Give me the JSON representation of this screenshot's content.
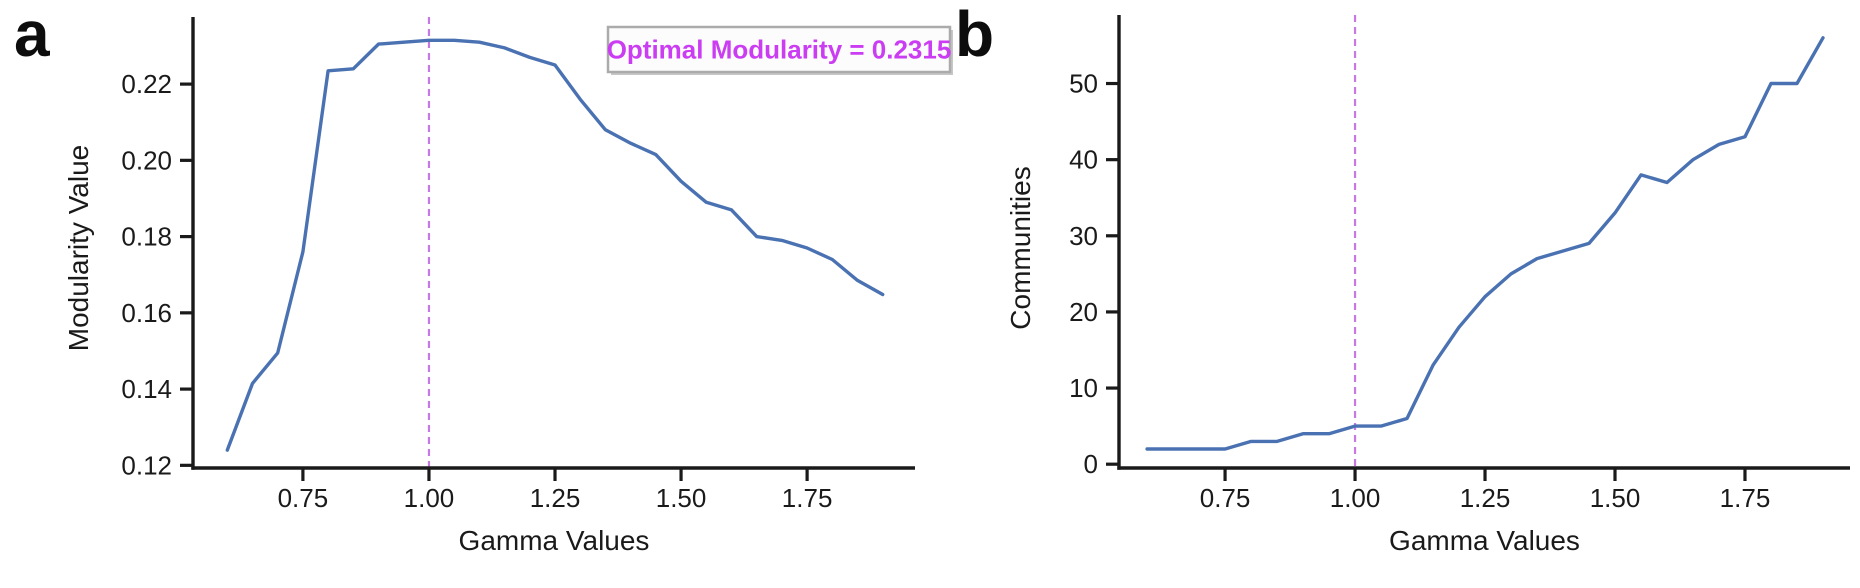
{
  "figure": {
    "background": "#ffffff",
    "panels": [
      {
        "label": "a"
      },
      {
        "label": "b"
      }
    ]
  },
  "colors": {
    "data_line": "#4a72b2",
    "vline": "#c06ae0",
    "axis": "#1a1a1a",
    "annotation_text": "#cb3df2",
    "annotation_border": "#ababab",
    "annotation_bg": "#fcfcfc",
    "annotation_shadow": "#999999"
  },
  "chart_data": [
    {
      "type": "line",
      "panel": "a",
      "title": "",
      "xlabel": "Gamma Values",
      "ylabel": "Modularity Value",
      "x": [
        0.6,
        0.65,
        0.7,
        0.75,
        0.8,
        0.85,
        0.9,
        0.95,
        1.0,
        1.05,
        1.1,
        1.15,
        1.2,
        1.25,
        1.3,
        1.35,
        1.4,
        1.45,
        1.5,
        1.55,
        1.6,
        1.65,
        1.7,
        1.75,
        1.8,
        1.85,
        1.9
      ],
      "y": [
        0.124,
        0.1415,
        0.1495,
        0.176,
        0.2235,
        0.224,
        0.2305,
        0.231,
        0.2315,
        0.2315,
        0.231,
        0.2295,
        0.227,
        0.225,
        0.216,
        0.208,
        0.2045,
        0.2015,
        0.1945,
        0.189,
        0.187,
        0.18,
        0.179,
        0.177,
        0.174,
        0.1685,
        0.1648
      ],
      "xlim": [
        0.532,
        1.964
      ],
      "ylim": [
        0.1193,
        0.2376
      ],
      "xticks": {
        "values": [
          0.75,
          1.0,
          1.25,
          1.5,
          1.75
        ],
        "labels": [
          "0.75",
          "1.00",
          "1.25",
          "1.50",
          "1.75"
        ]
      },
      "yticks": {
        "values": [
          0.12,
          0.14,
          0.16,
          0.18,
          0.2,
          0.22
        ],
        "labels": [
          "0.12",
          "0.14",
          "0.16",
          "0.18",
          "0.20",
          "0.22"
        ]
      },
      "grid": false,
      "legend": null,
      "vline": {
        "x": 1.0,
        "style": "dashed"
      },
      "annotation": {
        "text": "Optimal Modularity = 0.2315"
      }
    },
    {
      "type": "line",
      "panel": "b",
      "title": "",
      "xlabel": "Gamma Values",
      "ylabel": "Communities",
      "x": [
        0.6,
        0.65,
        0.7,
        0.75,
        0.8,
        0.85,
        0.9,
        0.95,
        1.0,
        1.05,
        1.1,
        1.15,
        1.2,
        1.25,
        1.3,
        1.35,
        1.4,
        1.45,
        1.5,
        1.55,
        1.6,
        1.65,
        1.7,
        1.75,
        1.8,
        1.85,
        1.9
      ],
      "y": [
        2,
        2,
        2,
        2,
        3,
        3,
        4,
        4,
        5,
        5,
        6,
        13,
        18,
        22,
        25,
        27,
        28,
        29,
        33,
        38,
        37,
        40,
        42,
        43,
        50,
        50,
        56
      ],
      "xlim": [
        0.546,
        1.952
      ],
      "ylim": [
        -0.5,
        59
      ],
      "xticks": {
        "values": [
          0.75,
          1.0,
          1.25,
          1.5,
          1.75
        ],
        "labels": [
          "0.75",
          "1.00",
          "1.25",
          "1.50",
          "1.75"
        ]
      },
      "yticks": {
        "values": [
          0,
          10,
          20,
          30,
          40,
          50
        ],
        "labels": [
          "0",
          "10",
          "20",
          "30",
          "40",
          "50"
        ]
      },
      "grid": false,
      "legend": null,
      "vline": {
        "x": 1.0,
        "style": "dashed"
      },
      "annotation": null
    }
  ]
}
